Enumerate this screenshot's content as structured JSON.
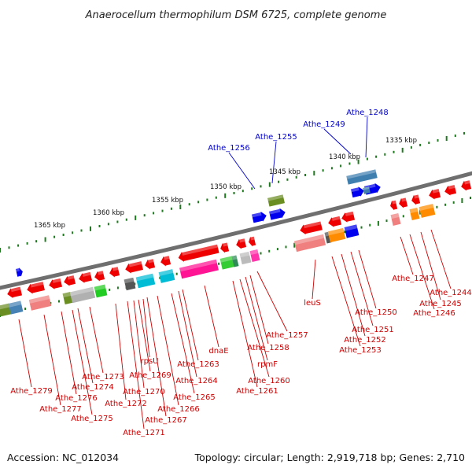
{
  "title": "Anaerocellum thermophilum DSM 6725, complete genome",
  "footer": {
    "accession": "Accession: NC_012034",
    "summary": "Topology: circular; Length: 2,919,718 bp; Genes: 2,710"
  },
  "scale_labels": [
    "1335 kbp",
    "1340 kbp",
    "1345 kbp",
    "1350 kbp",
    "1355 kbp",
    "1360 kbp",
    "1365 kbp"
  ],
  "colors": {
    "label_red": "#cc0000",
    "label_blue": "#0000cc",
    "tick_green": "#1f7a1f",
    "backbone": "#7a7a7a",
    "cds_red": "#ee0000",
    "rna_blue": "#0000ee"
  },
  "gene_labels_red": [
    "Athe_1244",
    "Athe_1245",
    "Athe_1246",
    "Athe_1247",
    "Athe_1250",
    "Athe_1251",
    "Athe_1252",
    "Athe_1253",
    "leuS",
    "Athe_1257",
    "Athe_1258",
    "rpmF",
    "Athe_1260",
    "Athe_1261",
    "dnaE",
    "Athe_1263",
    "Athe_1264",
    "Athe_1265",
    "Athe_1266",
    "Athe_1267",
    "rpsU",
    "Athe_1269",
    "Athe_1270",
    "Athe_1271",
    "Athe_1272",
    "Athe_1273",
    "Athe_1274",
    "Athe_1275",
    "Athe_1276",
    "Athe_1277",
    "Athe_1279"
  ],
  "gene_labels_blue": [
    "Athe_1248",
    "Athe_1249",
    "Athe_1255",
    "Athe_1256"
  ]
}
